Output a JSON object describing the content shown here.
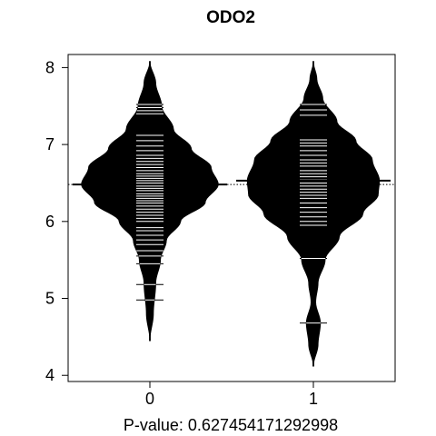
{
  "chart_data": {
    "type": "beanplot",
    "title": "ODO2",
    "xlabel": "P-value: 0.627454171292998",
    "ylabel": "",
    "categories": [
      "0",
      "1"
    ],
    "ylim": [
      4,
      8
    ],
    "yticks": [
      "4",
      "5",
      "6",
      "7",
      "8"
    ],
    "overall_reference_line": 6.48,
    "beans": [
      {
        "category": "0",
        "mean": 6.48,
        "range": [
          4.45,
          8.08
        ],
        "density_profile": [
          [
            4.45,
            0.0
          ],
          [
            4.8,
            0.03
          ],
          [
            5.2,
            0.05
          ],
          [
            5.5,
            0.09
          ],
          [
            5.75,
            0.14
          ],
          [
            6.0,
            0.26
          ],
          [
            6.25,
            0.47
          ],
          [
            6.48,
            0.58
          ],
          [
            6.7,
            0.52
          ],
          [
            6.95,
            0.35
          ],
          [
            7.2,
            0.2
          ],
          [
            7.5,
            0.1
          ],
          [
            7.8,
            0.05
          ],
          [
            8.08,
            0.0
          ]
        ],
        "observations": [
          4.98,
          5.18,
          5.45,
          5.55,
          5.62,
          5.7,
          5.76,
          5.82,
          5.88,
          5.92,
          6.0,
          6.04,
          6.08,
          6.12,
          6.16,
          6.2,
          6.24,
          6.27,
          6.3,
          6.33,
          6.36,
          6.4,
          6.43,
          6.46,
          6.5,
          6.53,
          6.56,
          6.59,
          6.62,
          6.66,
          6.7,
          6.74,
          6.78,
          6.82,
          6.86,
          6.92,
          6.98,
          7.05,
          7.12,
          7.4,
          7.44,
          7.48,
          7.52
        ]
      },
      {
        "category": "1",
        "mean": 6.53,
        "range": [
          4.12,
          8.08
        ],
        "density_profile": [
          [
            4.12,
            0.0
          ],
          [
            4.4,
            0.04
          ],
          [
            4.68,
            0.06
          ],
          [
            4.95,
            0.02
          ],
          [
            5.2,
            0.04
          ],
          [
            5.5,
            0.1
          ],
          [
            5.8,
            0.22
          ],
          [
            6.1,
            0.42
          ],
          [
            6.35,
            0.55
          ],
          [
            6.53,
            0.56
          ],
          [
            6.8,
            0.5
          ],
          [
            7.05,
            0.36
          ],
          [
            7.3,
            0.2
          ],
          [
            7.6,
            0.08
          ],
          [
            7.85,
            0.03
          ],
          [
            8.08,
            0.0
          ]
        ],
        "observations": [
          4.68,
          5.52,
          5.95,
          6.0,
          6.06,
          6.12,
          6.18,
          6.24,
          6.3,
          6.34,
          6.38,
          6.42,
          6.46,
          6.5,
          6.54,
          6.58,
          6.62,
          6.66,
          6.72,
          6.76,
          6.8,
          6.86,
          6.92,
          6.98,
          7.02,
          7.06,
          7.38,
          7.45,
          7.52
        ]
      }
    ]
  }
}
